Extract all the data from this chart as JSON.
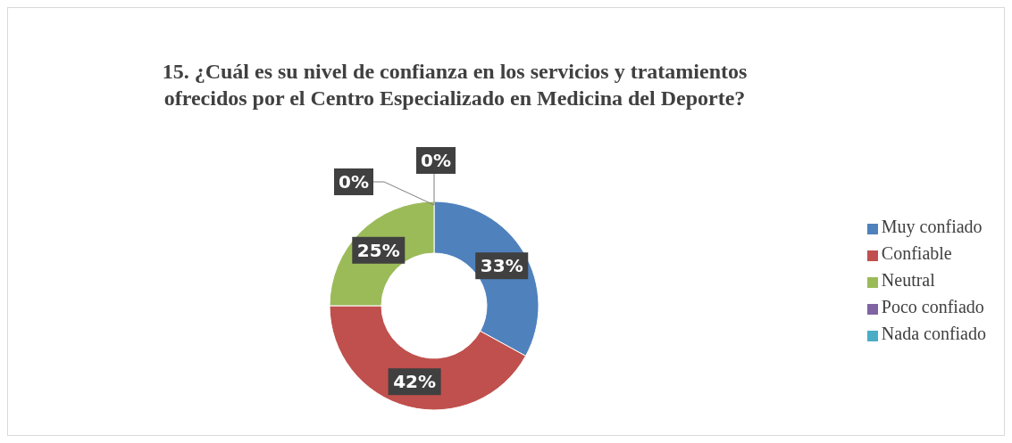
{
  "chart_data": {
    "type": "donut",
    "title": "15. ¿Cuál es su nivel de confianza en los servicios y tratamientos ofrecidos por el Centro Especializado en Medicina del Deporte?",
    "categories": [
      "Muy confiado",
      "Confiable",
      "Neutral",
      "Poco confiado",
      "Nada confiado"
    ],
    "values": [
      33,
      42,
      25,
      0,
      0
    ],
    "value_labels": [
      "33%",
      "42%",
      "25%",
      "0%",
      "0%"
    ],
    "colors": [
      "#4f81bd",
      "#c0504d",
      "#9bbb59",
      "#8064a2",
      "#4bacc6"
    ],
    "legend": "right"
  }
}
